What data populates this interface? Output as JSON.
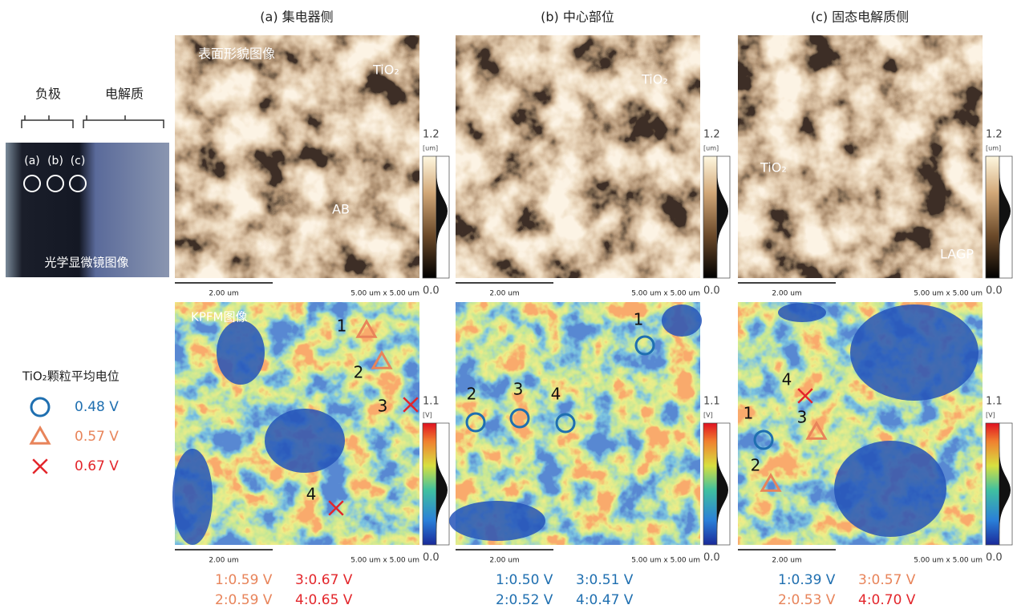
{
  "optical": {
    "anode": "负极",
    "electrolyte": "电解质",
    "positions": [
      "(a)",
      "(b)",
      "(c)"
    ],
    "caption": "光学显微镜图像"
  },
  "legend": {
    "title": "TiO₂颗粒平均电位",
    "entries": [
      "0.48 V",
      "0.57 V",
      "0.67 V"
    ]
  },
  "panels": [
    {
      "title": "(a) 集电器侧",
      "topography": {
        "labels": [
          "表面形貌图像",
          "TiO₂",
          "AB"
        ],
        "scale_bar": "2.00 um",
        "scan_size": "5.00 um x 5.00 um",
        "colorbar": {
          "max": "1.2",
          "unit": "[um]",
          "min": "0.0"
        }
      },
      "kpfm": {
        "label": "KPFM图像",
        "points": [
          "1",
          "2",
          "3",
          "4"
        ],
        "scale_bar": "2.00 um",
        "scan_size": "5.00 um x 5.00 um",
        "colorbar": {
          "max": "1.1",
          "unit": "[V]",
          "min": "0.0"
        }
      },
      "results": [
        "1:0.59 V",
        "3:0.67 V",
        "2:0.59 V",
        "4:0.65 V"
      ]
    },
    {
      "title": "(b) 中心部位",
      "topography": {
        "labels": [
          "TiO₂"
        ],
        "scale_bar": "2.00 um",
        "scan_size": "5.00 um x 5.00 um",
        "colorbar": {
          "max": "1.2",
          "unit": "[um]",
          "min": "0.0"
        }
      },
      "kpfm": {
        "points": [
          "1",
          "2",
          "3",
          "4"
        ],
        "scale_bar": "2.00 um",
        "scan_size": "5.00 um x 5.00 um",
        "colorbar": {
          "max": "1.1",
          "unit": "[V]",
          "min": "0.0"
        }
      },
      "results": [
        "1:0.50 V",
        "3:0.51 V",
        "2:0.52 V",
        "4:0.47 V"
      ]
    },
    {
      "title": "(c) 固态电解质侧",
      "topography": {
        "labels": [
          "TiO₂",
          "LAGP"
        ],
        "scale_bar": "2.00 um",
        "scan_size": "5.00 um x 5.00 um",
        "colorbar": {
          "max": "1.2",
          "unit": "[um]",
          "min": "0.0"
        }
      },
      "kpfm": {
        "points": [
          "1",
          "2",
          "3",
          "4"
        ],
        "scale_bar": "2.00 um",
        "scan_size": "5.00 um x 5.00 um",
        "colorbar": {
          "max": "1.1",
          "unit": "[V]",
          "min": "0.0"
        }
      },
      "results": [
        "1:0.39 V",
        "3:0.57 V",
        "2:0.53 V",
        "4:0.70 V"
      ]
    }
  ]
}
